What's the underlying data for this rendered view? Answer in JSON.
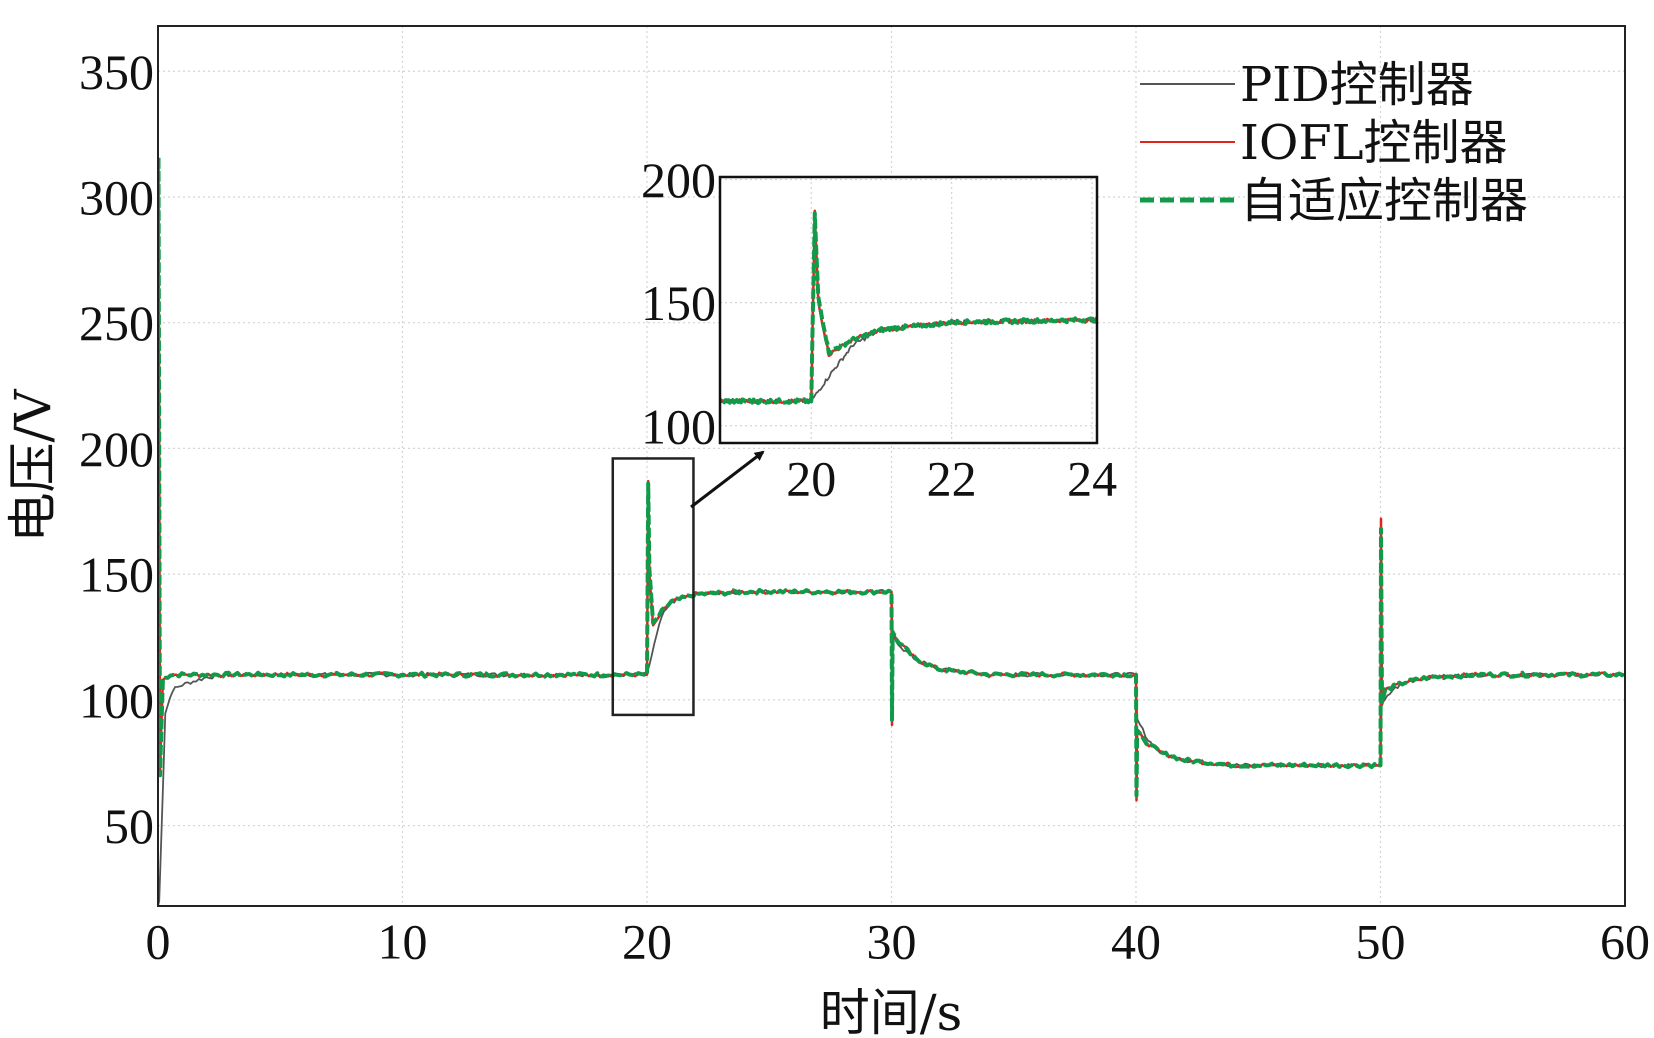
{
  "chart_data": {
    "type": "line",
    "title": "",
    "xlabel": "时间/s",
    "ylabel": "电压/V",
    "xlim": [
      0,
      60
    ],
    "ylim": [
      18,
      368
    ],
    "xticks": [
      0,
      10,
      20,
      30,
      40,
      50,
      60
    ],
    "yticks": [
      50,
      100,
      150,
      200,
      250,
      300,
      350
    ],
    "grid": true,
    "legend_position": "top-right",
    "colors": {
      "pid": "#555555",
      "iofl": "#e0261c",
      "adaptive": "#109a4a"
    },
    "series": [
      {
        "name": "PID控制器",
        "style": "solid",
        "x": [
          0,
          0.05,
          0.3,
          0.6,
          1,
          2,
          3,
          20,
          20.3,
          20.6,
          21,
          22,
          24,
          30,
          30.05,
          30.5,
          31,
          32,
          34,
          40,
          40.05,
          40.5,
          41,
          42,
          44,
          50,
          50.05,
          50.5,
          51,
          52,
          54,
          60
        ],
        "y": [
          18,
          20,
          95,
          104,
          106,
          109,
          110,
          110,
          122,
          133,
          139,
          142,
          143,
          143,
          125,
          120,
          116,
          112,
          110,
          110,
          92,
          84,
          79,
          76,
          74,
          74,
          98,
          104,
          107,
          109,
          110,
          110
        ]
      },
      {
        "name": "IOFL控制器",
        "style": "solid",
        "x": [
          0,
          0.02,
          0.08,
          0.2,
          0.5,
          20,
          20.05,
          20.1,
          20.25,
          20.6,
          21,
          22,
          24,
          30,
          30.02,
          30.05,
          30.2,
          31,
          32,
          34,
          40,
          40.02,
          40.05,
          40.3,
          41,
          42,
          44,
          50,
          50.02,
          50.06,
          50.2,
          51,
          52,
          54,
          60
        ],
        "y": [
          110,
          315,
          72,
          108,
          110,
          110,
          187,
          150,
          129,
          135,
          139,
          142,
          143,
          143,
          90,
          127,
          124,
          116,
          112,
          110,
          110,
          60,
          88,
          84,
          79,
          76,
          74,
          74,
          172,
          98,
          104,
          107,
          109,
          110,
          110
        ]
      },
      {
        "name": "自适应控制器",
        "style": "dashed",
        "x": [
          0,
          0.02,
          0.08,
          0.2,
          0.5,
          20,
          20.05,
          20.1,
          20.25,
          20.6,
          21,
          22,
          24,
          30,
          30.02,
          30.05,
          30.2,
          31,
          32,
          34,
          40,
          40.02,
          40.05,
          40.3,
          41,
          42,
          44,
          50,
          50.02,
          50.06,
          50.2,
          51,
          52,
          54,
          60
        ],
        "y": [
          110,
          316,
          70,
          108,
          110,
          110,
          186,
          152,
          130,
          135,
          139,
          142,
          143,
          143,
          92,
          127,
          124,
          116,
          112,
          110,
          110,
          62,
          88,
          84,
          79,
          76,
          74,
          74,
          168,
          99,
          104,
          107,
          109,
          110,
          110
        ]
      }
    ],
    "inset": {
      "xlim": [
        18.7,
        24.07
      ],
      "ylim": [
        93,
        201
      ],
      "xticks": [
        20,
        22,
        24
      ],
      "yticks": [
        100,
        150,
        200
      ],
      "zoom_region": {
        "x": [
          18.6,
          21.9
        ],
        "y": [
          94,
          196
        ]
      }
    }
  }
}
